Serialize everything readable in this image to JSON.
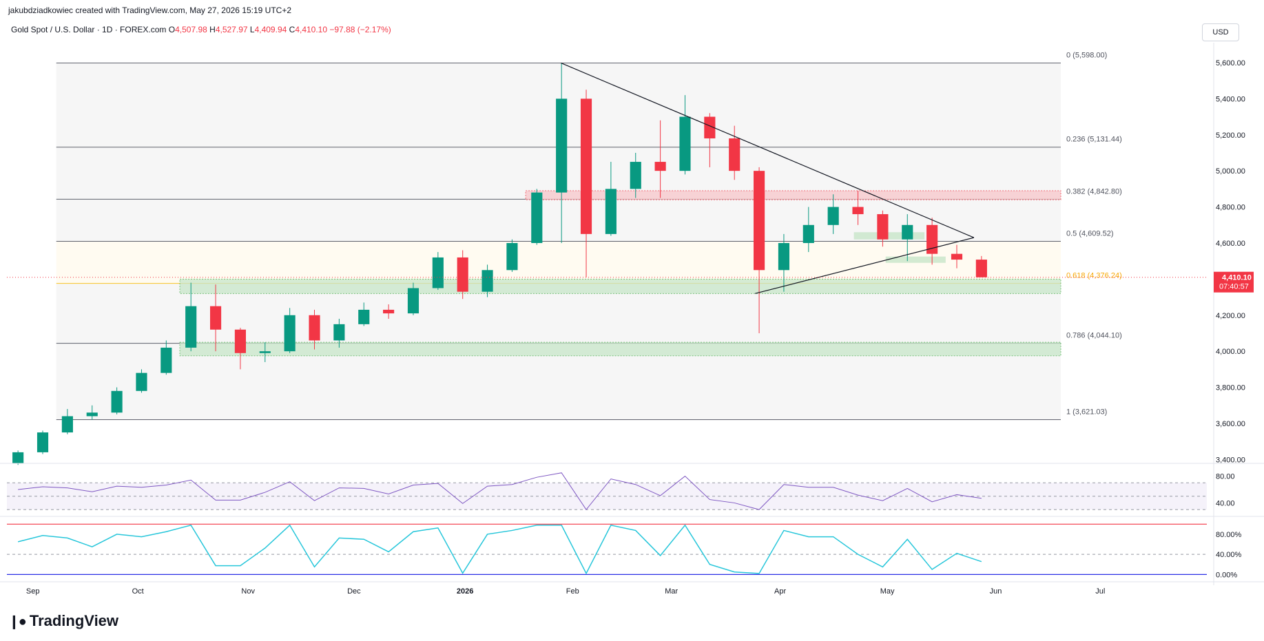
{
  "header": {
    "credit": "jakubdziadkowiec created with TradingView.com, May 27, 2026 15:19 UTC+2",
    "symbol": "Gold Spot / U.S. Dollar · 1D · FOREX.com",
    "ohlc": {
      "o_label": "O",
      "o": "4,507.98",
      "h_label": "H",
      "h": "4,527.97",
      "l_label": "L",
      "l": "4,409.94",
      "c_label": "C",
      "c": "4,410.10",
      "change": "−97.88 (−2.17%)"
    },
    "currency_button": "USD"
  },
  "brand": {
    "name": "TradingView",
    "logo_icon": "tradingview-logo-icon"
  },
  "colors": {
    "up": "#089981",
    "down": "#f23645",
    "fib_line": "#787b86",
    "rsi_line": "#7e57c2",
    "rsi_ma": "#f7c325",
    "green_zone": "#c8e6c9",
    "red_zone": "#f8c7ca"
  },
  "chart_data": {
    "type": "candlestick",
    "price_axis": {
      "ticks": [
        "5,600.00",
        "5,400.00",
        "5,200.00",
        "5,000.00",
        "4,800.00",
        "4,600.00",
        "4,400.00",
        "4,200.00",
        "4,000.00",
        "3,800.00",
        "3,600.00",
        "3,400.00"
      ],
      "ylim": [
        3390,
        5680
      ]
    },
    "time_axis": {
      "ticks": [
        "Sep",
        "Oct",
        "Nov",
        "Dec",
        "2026",
        "Feb",
        "Mar",
        "Apr",
        "May",
        "Jun",
        "Jul"
      ]
    },
    "last_price": {
      "value": 4410.1,
      "label": "4,410.10",
      "countdown": "07:40:57"
    },
    "fib_levels": [
      {
        "ratio": "0",
        "value": 5598.0,
        "label": "0 (5,598.00)"
      },
      {
        "ratio": "0.236",
        "value": 5131.44,
        "label": "0.236 (5,131.44)"
      },
      {
        "ratio": "0.382",
        "value": 4842.8,
        "label": "0.382 (4,842.80)"
      },
      {
        "ratio": "0.5",
        "value": 4609.52,
        "label": "0.5 (4,609.52)"
      },
      {
        "ratio": "0.618",
        "value": 4376.24,
        "label": "0.618 (4,376.24)"
      },
      {
        "ratio": "0.786",
        "value": 4044.1,
        "label": "0.786 (4,044.10)"
      },
      {
        "ratio": "1",
        "value": 3621.03,
        "label": "1 (3,621.03)"
      }
    ],
    "candles_weekly_approx": [
      {
        "date": "2025-08-25",
        "o": 3380,
        "h": 3450,
        "l": 3370,
        "c": 3440
      },
      {
        "date": "2025-09-01",
        "o": 3440,
        "h": 3560,
        "l": 3430,
        "c": 3550
      },
      {
        "date": "2025-09-08",
        "o": 3550,
        "h": 3680,
        "l": 3540,
        "c": 3640
      },
      {
        "date": "2025-09-15",
        "o": 3640,
        "h": 3700,
        "l": 3620,
        "c": 3660
      },
      {
        "date": "2025-09-22",
        "o": 3660,
        "h": 3800,
        "l": 3650,
        "c": 3780
      },
      {
        "date": "2025-09-29",
        "o": 3780,
        "h": 3900,
        "l": 3770,
        "c": 3880
      },
      {
        "date": "2025-10-06",
        "o": 3880,
        "h": 4060,
        "l": 3870,
        "c": 4020
      },
      {
        "date": "2025-10-13",
        "o": 4020,
        "h": 4380,
        "l": 4000,
        "c": 4250
      },
      {
        "date": "2025-10-20",
        "o": 4250,
        "h": 4370,
        "l": 4000,
        "c": 4120
      },
      {
        "date": "2025-10-27",
        "o": 4120,
        "h": 4130,
        "l": 3900,
        "c": 3990
      },
      {
        "date": "2025-11-03",
        "o": 3990,
        "h": 4050,
        "l": 3940,
        "c": 4000
      },
      {
        "date": "2025-11-10",
        "o": 4000,
        "h": 4240,
        "l": 3990,
        "c": 4200
      },
      {
        "date": "2025-11-17",
        "o": 4200,
        "h": 4230,
        "l": 4010,
        "c": 4060
      },
      {
        "date": "2025-11-24",
        "o": 4060,
        "h": 4180,
        "l": 4020,
        "c": 4150
      },
      {
        "date": "2025-12-01",
        "o": 4150,
        "h": 4270,
        "l": 4140,
        "c": 4230
      },
      {
        "date": "2025-12-08",
        "o": 4230,
        "h": 4260,
        "l": 4180,
        "c": 4210
      },
      {
        "date": "2025-12-15",
        "o": 4210,
        "h": 4380,
        "l": 4200,
        "c": 4350
      },
      {
        "date": "2025-12-22",
        "o": 4350,
        "h": 4550,
        "l": 4340,
        "c": 4520
      },
      {
        "date": "2025-12-29",
        "o": 4520,
        "h": 4560,
        "l": 4290,
        "c": 4330
      },
      {
        "date": "2026-01-05",
        "o": 4330,
        "h": 4480,
        "l": 4300,
        "c": 4450
      },
      {
        "date": "2026-01-12",
        "o": 4450,
        "h": 4620,
        "l": 4440,
        "c": 4600
      },
      {
        "date": "2026-01-19",
        "o": 4600,
        "h": 4900,
        "l": 4590,
        "c": 4880
      },
      {
        "date": "2026-01-26",
        "o": 4880,
        "h": 5598,
        "l": 4600,
        "c": 5400
      },
      {
        "date": "2026-02-02",
        "o": 5400,
        "h": 5450,
        "l": 4410,
        "c": 4650
      },
      {
        "date": "2026-02-09",
        "o": 4650,
        "h": 5050,
        "l": 4640,
        "c": 4900
      },
      {
        "date": "2026-02-16",
        "o": 4900,
        "h": 5100,
        "l": 4850,
        "c": 5050
      },
      {
        "date": "2026-02-23",
        "o": 5050,
        "h": 5280,
        "l": 4850,
        "c": 5000
      },
      {
        "date": "2026-03-02",
        "o": 5000,
        "h": 5420,
        "l": 4980,
        "c": 5300
      },
      {
        "date": "2026-03-09",
        "o": 5300,
        "h": 5320,
        "l": 5020,
        "c": 5180
      },
      {
        "date": "2026-03-16",
        "o": 5180,
        "h": 5250,
        "l": 4950,
        "c": 5000
      },
      {
        "date": "2026-03-23",
        "o": 5000,
        "h": 5020,
        "l": 4100,
        "c": 4450
      },
      {
        "date": "2026-03-30",
        "o": 4450,
        "h": 4650,
        "l": 4330,
        "c": 4600
      },
      {
        "date": "2026-04-06",
        "o": 4600,
        "h": 4800,
        "l": 4550,
        "c": 4700
      },
      {
        "date": "2026-04-13",
        "o": 4700,
        "h": 4870,
        "l": 4650,
        "c": 4800
      },
      {
        "date": "2026-04-20",
        "o": 4800,
        "h": 4890,
        "l": 4700,
        "c": 4760
      },
      {
        "date": "2026-04-27",
        "o": 4760,
        "h": 4780,
        "l": 4580,
        "c": 4620
      },
      {
        "date": "2026-05-04",
        "o": 4620,
        "h": 4760,
        "l": 4500,
        "c": 4700
      },
      {
        "date": "2026-05-11",
        "o": 4700,
        "h": 4740,
        "l": 4480,
        "c": 4540
      },
      {
        "date": "2026-05-18",
        "o": 4540,
        "h": 4590,
        "l": 4460,
        "c": 4508
      },
      {
        "date": "2026-05-25",
        "o": 4508,
        "h": 4528,
        "l": 4410,
        "c": 4410
      }
    ],
    "rsi": {
      "ticks": [
        "80.00",
        "40.00"
      ],
      "ylim": [
        25,
        95
      ],
      "bands": [
        70,
        30
      ]
    },
    "oscillator": {
      "ticks": [
        "80.00%",
        "40.00%",
        "0.00%"
      ],
      "ylim": [
        -5,
        110
      ]
    }
  }
}
